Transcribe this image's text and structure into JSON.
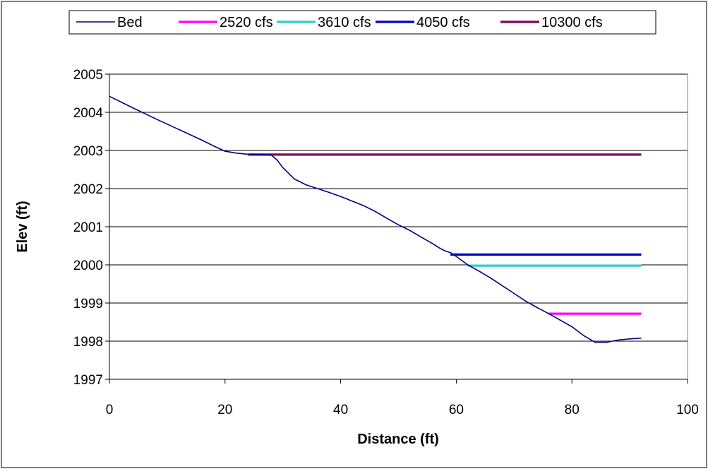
{
  "chart_data": {
    "type": "line",
    "title": "",
    "xlabel": "Distance (ft)",
    "ylabel": "Elev (ft)",
    "xlim": [
      0,
      100
    ],
    "ylim": [
      1997,
      2005
    ],
    "x_ticks": [
      "0",
      "20",
      "40",
      "60",
      "80",
      "100"
    ],
    "y_ticks": [
      "1997",
      "1998",
      "1999",
      "2000",
      "2001",
      "2002",
      "2003",
      "2004",
      "2005"
    ],
    "grid": "horizontal",
    "legend_position": "top",
    "series": [
      {
        "name": "Bed",
        "color": "#000080",
        "x": [
          0,
          4,
          8,
          12,
          16,
          18,
          20,
          22,
          24,
          26,
          28,
          29,
          30,
          32,
          34,
          36,
          38,
          40,
          42,
          44,
          46,
          48,
          50,
          52,
          54,
          56,
          57,
          58,
          59,
          60,
          62,
          64,
          66,
          68,
          70,
          72,
          74,
          76,
          78,
          80,
          82,
          84,
          86,
          88,
          90,
          92
        ],
        "y": [
          2004.42,
          2004.12,
          2003.83,
          2003.55,
          2003.27,
          2003.12,
          2002.98,
          2002.93,
          2002.9,
          2002.9,
          2002.88,
          2002.75,
          2002.55,
          2002.25,
          2002.1,
          2002.0,
          2001.9,
          2001.79,
          2001.67,
          2001.55,
          2001.4,
          2001.22,
          2001.05,
          2000.9,
          2000.72,
          2000.55,
          2000.45,
          2000.37,
          2000.32,
          2000.22,
          2000.0,
          1999.83,
          1999.65,
          1999.45,
          1999.25,
          1999.05,
          1998.88,
          1998.72,
          1998.55,
          1998.38,
          1998.15,
          1997.97,
          1997.97,
          1998.03,
          1998.06,
          1998.08
        ]
      },
      {
        "name": "2520 cfs",
        "color": "#ff00ff",
        "x": [
          76,
          92
        ],
        "y": [
          1998.72,
          1998.72
        ]
      },
      {
        "name": "3610 cfs",
        "color": "#33cccc",
        "x": [
          62,
          92
        ],
        "y": [
          1999.98,
          1999.98
        ]
      },
      {
        "name": "4050 cfs",
        "color": "#0000cc",
        "x": [
          59,
          92
        ],
        "y": [
          2000.27,
          2000.27
        ]
      },
      {
        "name": "10300 cfs",
        "color": "#800060",
        "x": [
          24,
          92
        ],
        "y": [
          2002.89,
          2002.89
        ]
      }
    ]
  }
}
